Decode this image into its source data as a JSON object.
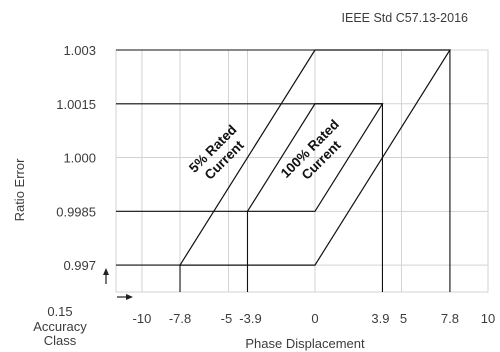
{
  "standard": "IEEE Std C57.13-2016",
  "accuracy_class_label": [
    "0.15",
    "Accuracy",
    "Class"
  ],
  "chart_data": {
    "type": "line",
    "title": "",
    "xlabel": "Phase Displacement",
    "ylabel": "Ratio Error",
    "xlim": [
      -11.5,
      10
    ],
    "ylim": [
      0.99625,
      1.003
    ],
    "grid": true,
    "x_gridlines": [
      -10,
      -7.8,
      -5,
      -3.9,
      0,
      3.9,
      5,
      7.8,
      10
    ],
    "y_gridlines": [
      0.997,
      0.9985,
      1.0,
      1.0015,
      1.003
    ],
    "x_ticks": [
      {
        "value": -10,
        "label": "-10"
      },
      {
        "value": -7.8,
        "label": "-7.8"
      },
      {
        "value": -5,
        "label": "-5"
      },
      {
        "value": -3.9,
        "label": "-3.9"
      },
      {
        "value": 0,
        "label": "0"
      },
      {
        "value": 3.9,
        "label": "3.9"
      },
      {
        "value": 5,
        "label": "5"
      },
      {
        "value": 7.8,
        "label": "7.8"
      },
      {
        "value": 10,
        "label": "10"
      }
    ],
    "y_ticks": [
      {
        "value": 1.003,
        "label": "1.003"
      },
      {
        "value": 1.0015,
        "label": "1.0015"
      },
      {
        "value": 1.0,
        "label": "1.000"
      },
      {
        "value": 0.9985,
        "label": "0.9985"
      },
      {
        "value": 0.997,
        "label": "0.997"
      }
    ],
    "regions": [
      {
        "name": "5% Rated Current",
        "label_lines": [
          "5% Rated",
          "Current"
        ],
        "polygon": [
          [
            -7.8,
            0.997
          ],
          [
            0,
            0.997
          ],
          [
            7.8,
            1.003
          ],
          [
            0,
            1.003
          ]
        ],
        "limit": {
          "x": -7.8,
          "y": 1.003,
          "x2": 7.8,
          "y2": 0.997
        }
      },
      {
        "name": "100% Rated Current",
        "label_lines": [
          "100% Rated",
          "Current"
        ],
        "polygon": [
          [
            -3.9,
            0.9985
          ],
          [
            0,
            0.9985
          ],
          [
            3.9,
            1.0015
          ],
          [
            0,
            1.0015
          ]
        ],
        "limit": {
          "x": -3.9,
          "y": 1.0015,
          "x2": 3.9,
          "y2": 0.9985
        }
      }
    ]
  }
}
